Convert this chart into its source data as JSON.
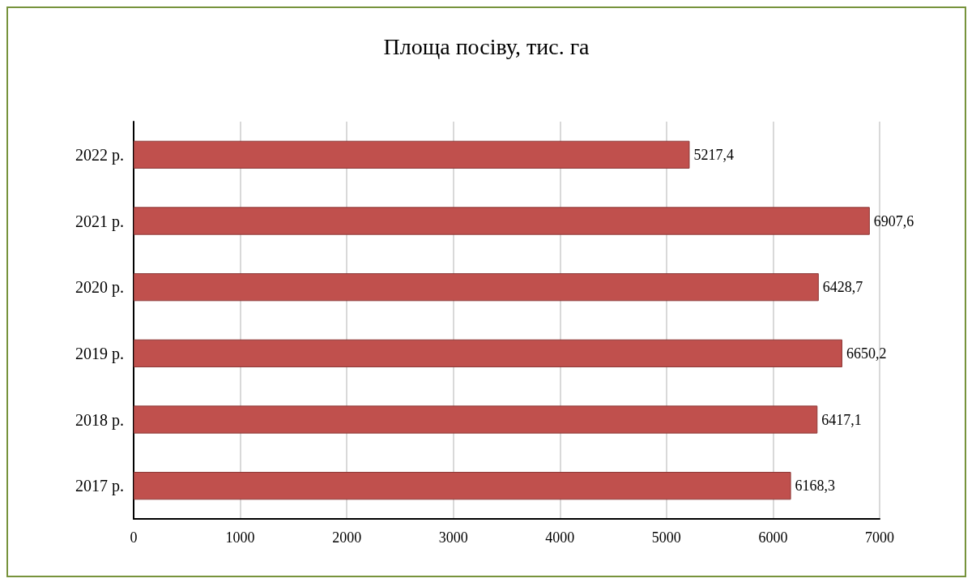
{
  "chart_data": {
    "type": "bar",
    "orientation": "horizontal",
    "title": "Площа посіву, тис. га",
    "categories": [
      "2022 р.",
      "2021 р.",
      "2020 р.",
      "2019 р.",
      "2018 р.",
      "2017 р."
    ],
    "values": [
      5217.4,
      6907.6,
      6428.7,
      6650.2,
      6417.1,
      6168.3
    ],
    "value_labels": [
      "5217,4",
      "6907,6",
      "6428,7",
      "6650,2",
      "6417,1",
      "6168,3"
    ],
    "color": "#c0504d",
    "xlim": [
      0,
      7000
    ],
    "xticks": [
      0,
      1000,
      2000,
      3000,
      4000,
      5000,
      6000,
      7000
    ],
    "grid": "x"
  }
}
